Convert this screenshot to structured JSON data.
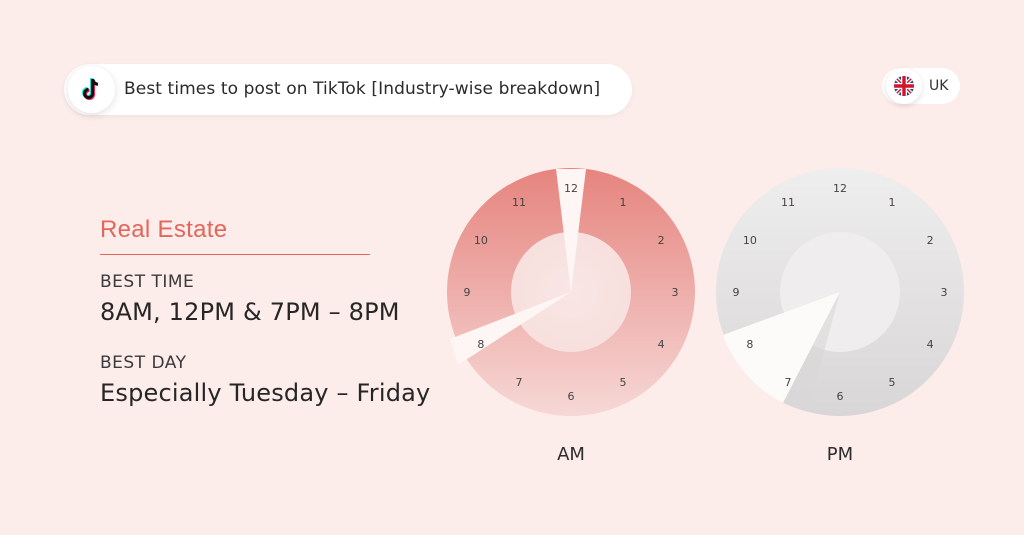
{
  "header": {
    "title": "Best times to post on TikTok [Industry-wise breakdown]",
    "logo_icon": "tiktok-logo-icon"
  },
  "region": {
    "label": "UK",
    "flag_icon": "uk-flag-icon"
  },
  "industry": {
    "name": "Real Estate",
    "best_time_label": "BEST TIME",
    "best_time_value": "8AM, 12PM & 7PM – 8PM",
    "best_day_label": "BEST DAY",
    "best_day_value": "Especially Tuesday – Friday"
  },
  "clocks": {
    "numbers": [
      "12",
      "1",
      "2",
      "3",
      "4",
      "5",
      "6",
      "7",
      "8",
      "9",
      "10",
      "11"
    ],
    "am": {
      "label": "AM",
      "highlighted_hours": [
        "8",
        "12"
      ],
      "color": "#e98a85"
    },
    "pm": {
      "label": "PM",
      "highlighted_range": [
        "7",
        "8"
      ],
      "color": "#d6d4d4"
    }
  },
  "colors": {
    "accent": "#e3665c",
    "background": "#fcecea"
  }
}
